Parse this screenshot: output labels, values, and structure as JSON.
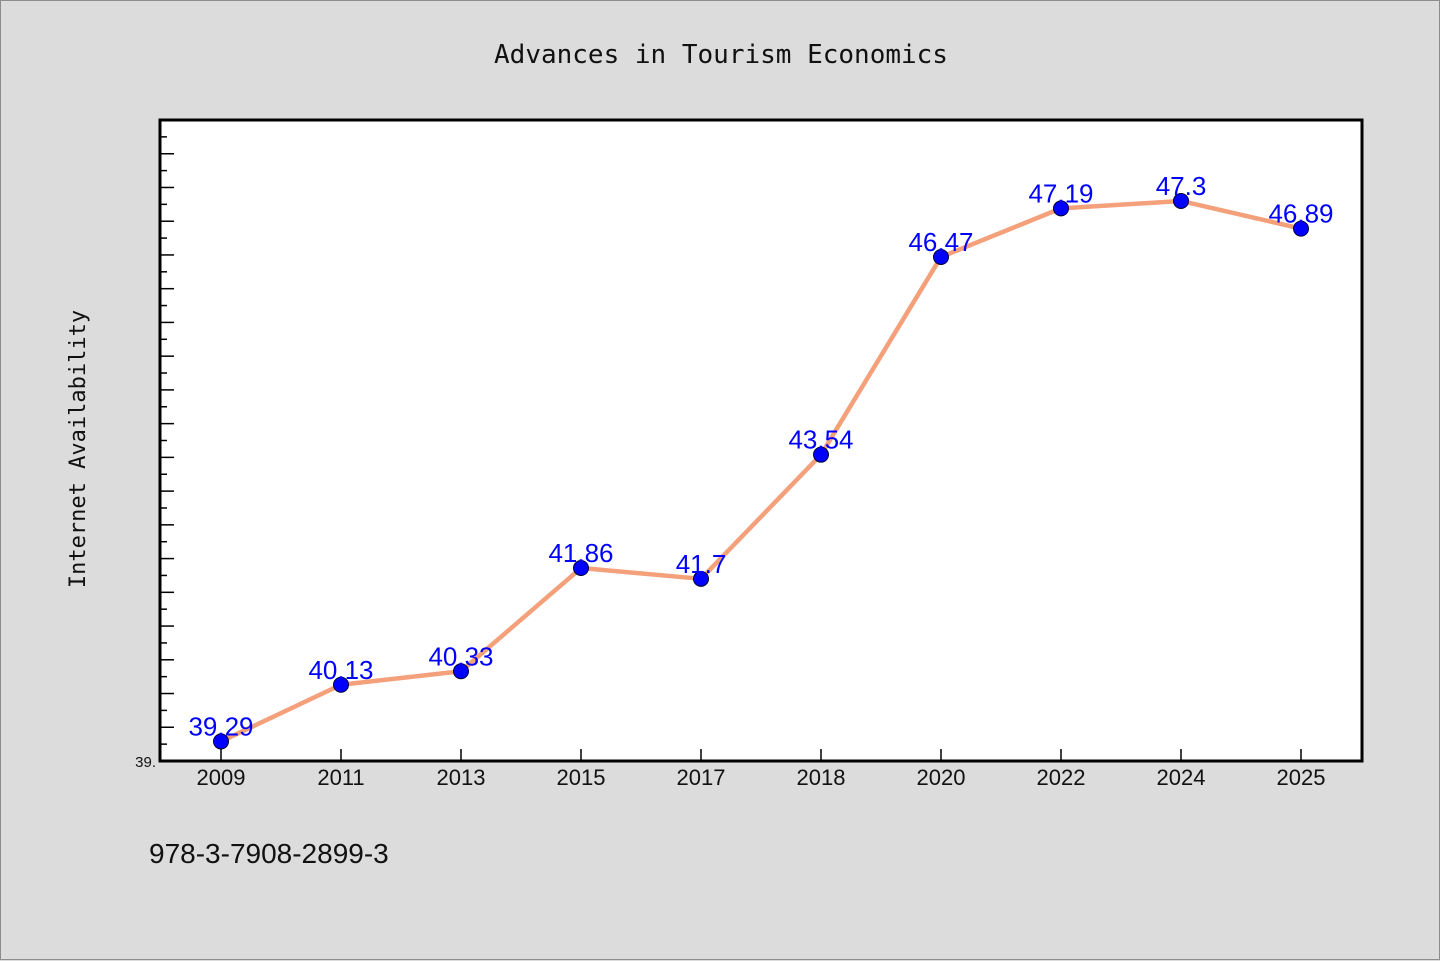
{
  "chart_data": {
    "type": "line",
    "title": "Advances in Tourism Economics",
    "xlabel": "",
    "ylabel": "Internet Availability",
    "categories": [
      "2009",
      "2011",
      "2013",
      "2015",
      "2017",
      "2018",
      "2020",
      "2022",
      "2024",
      "2025"
    ],
    "series": [
      {
        "values": [
          39.29,
          40.13,
          40.33,
          41.86,
          41.7,
          43.54,
          46.47,
          47.19,
          47.3,
          46.89
        ],
        "labels": [
          "39.29",
          "40.13",
          "40.33",
          "41.86",
          "41.7",
          "43.54",
          "46.47",
          "47.19",
          "47.3",
          "46.89"
        ]
      }
    ],
    "ylim": [
      39.0,
      48.5
    ],
    "ytick_labels": [
      "39."
    ],
    "grid": false,
    "line_color": "#f4a07a",
    "marker_color": "#0000ff",
    "label_color": "#0000ff"
  },
  "footer": {
    "isbn": "978-3-7908-2899-3"
  }
}
